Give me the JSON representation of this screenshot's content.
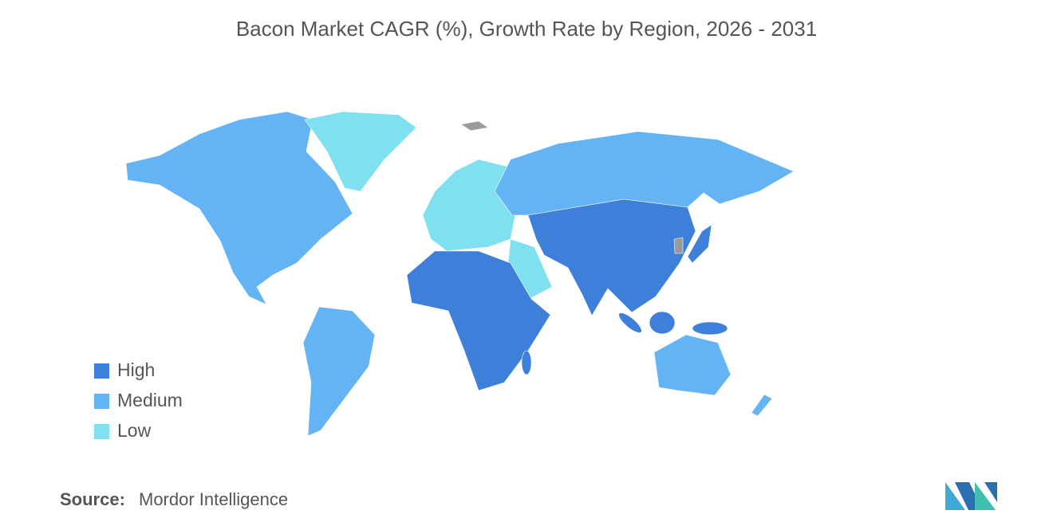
{
  "title": "Bacon Market CAGR (%), Growth Rate by Region, 2026 - 2031",
  "legend": [
    {
      "label": "High",
      "color": "#3d7fd9"
    },
    {
      "label": "Medium",
      "color": "#64b4f5"
    },
    {
      "label": "Low",
      "color": "#7fe0ef"
    }
  ],
  "source": {
    "label": "Source:",
    "text": "Mordor Intelligence"
  }
}
